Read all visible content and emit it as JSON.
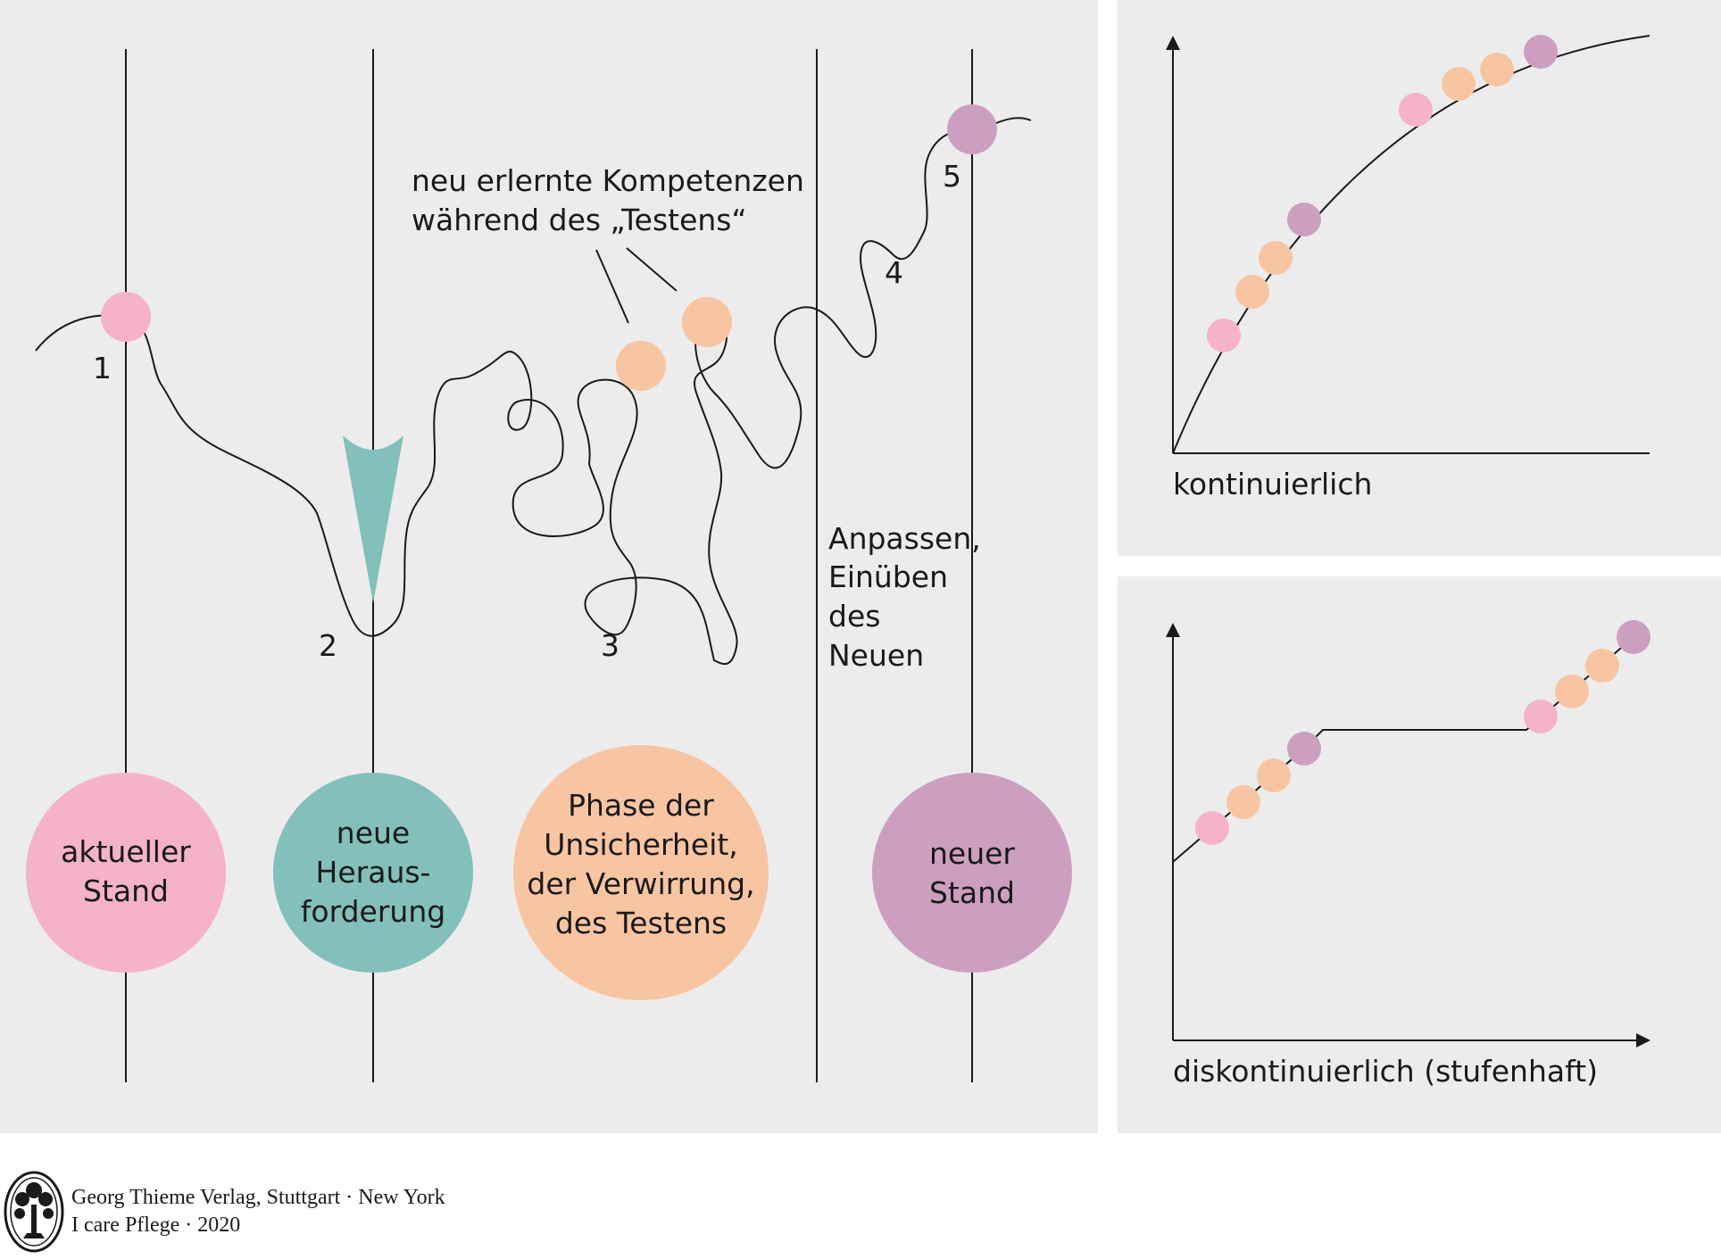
{
  "colors": {
    "panel_bg": "#ececec",
    "line": "#1a1a1a",
    "pink": "#f4b3c9",
    "teal": "#84c0bb",
    "peach": "#f8c5a2",
    "purple": "#cc9fc0"
  },
  "steps": [
    {
      "num": "1"
    },
    {
      "num": "2"
    },
    {
      "num": "3"
    },
    {
      "num": "4"
    },
    {
      "num": "5"
    }
  ],
  "annotations": {
    "competencies_line1": "neu erlernte Kompetenzen",
    "competencies_line2": "während des „Testens“",
    "adapt_line1": "Anpassen,",
    "adapt_line2": "Einüben",
    "adapt_line3": "des",
    "adapt_line4": "Neuen"
  },
  "phases": [
    {
      "lines": [
        "aktueller",
        "Stand"
      ],
      "color": "pink"
    },
    {
      "lines": [
        "neue",
        "Heraus-",
        "forderung"
      ],
      "color": "teal"
    },
    {
      "lines": [
        "Phase der",
        "Unsicherheit,",
        "der Verwirrung,",
        "des Testens"
      ],
      "color": "peach"
    },
    {
      "lines": [
        "neuer",
        "Stand"
      ],
      "color": "purple"
    }
  ],
  "charts": {
    "continuous_label": "kontinuierlich",
    "discontinuous_label": "diskontinuierlich (stufenhaft)"
  },
  "footer": {
    "publisher": "Georg Thieme Verlag, Stuttgart · New York",
    "book": "I care Pflege · 2020",
    "logo_icon": "tree-logo-icon"
  }
}
